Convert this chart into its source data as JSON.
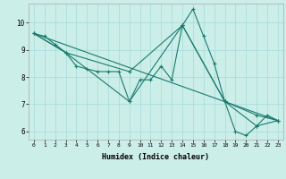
{
  "xlabel": "Humidex (Indice chaleur)",
  "background_color": "#cceee8",
  "grid_color": "#aadddd",
  "line_color": "#1a7a6e",
  "xlim": [
    -0.5,
    23.5
  ],
  "ylim": [
    5.7,
    10.7
  ],
  "xticks": [
    0,
    1,
    2,
    3,
    4,
    5,
    6,
    7,
    8,
    9,
    10,
    11,
    12,
    13,
    14,
    15,
    16,
    17,
    18,
    19,
    20,
    21,
    22,
    23
  ],
  "yticks": [
    6,
    7,
    8,
    9,
    10
  ],
  "series1_x": [
    0,
    1,
    2,
    3,
    4,
    5,
    6,
    7,
    8,
    9,
    10,
    11,
    12,
    13,
    14,
    15,
    16,
    17,
    18,
    19,
    20,
    21,
    22,
    23
  ],
  "series1_y": [
    9.6,
    9.5,
    9.2,
    8.9,
    8.4,
    8.3,
    8.2,
    8.2,
    8.2,
    7.1,
    7.9,
    7.9,
    8.4,
    7.9,
    9.9,
    10.5,
    9.5,
    8.5,
    7.1,
    6.0,
    5.85,
    6.2,
    6.6,
    6.4
  ],
  "series2_x": [
    0,
    3,
    9,
    14,
    18,
    21,
    23
  ],
  "series2_y": [
    9.6,
    8.9,
    7.1,
    9.9,
    7.1,
    6.2,
    6.4
  ],
  "series3_x": [
    0,
    3,
    9,
    14,
    18,
    21,
    23
  ],
  "series3_y": [
    9.6,
    8.9,
    8.2,
    9.9,
    7.1,
    6.6,
    6.4
  ],
  "series4_x": [
    0,
    23
  ],
  "series4_y": [
    9.6,
    6.4
  ]
}
